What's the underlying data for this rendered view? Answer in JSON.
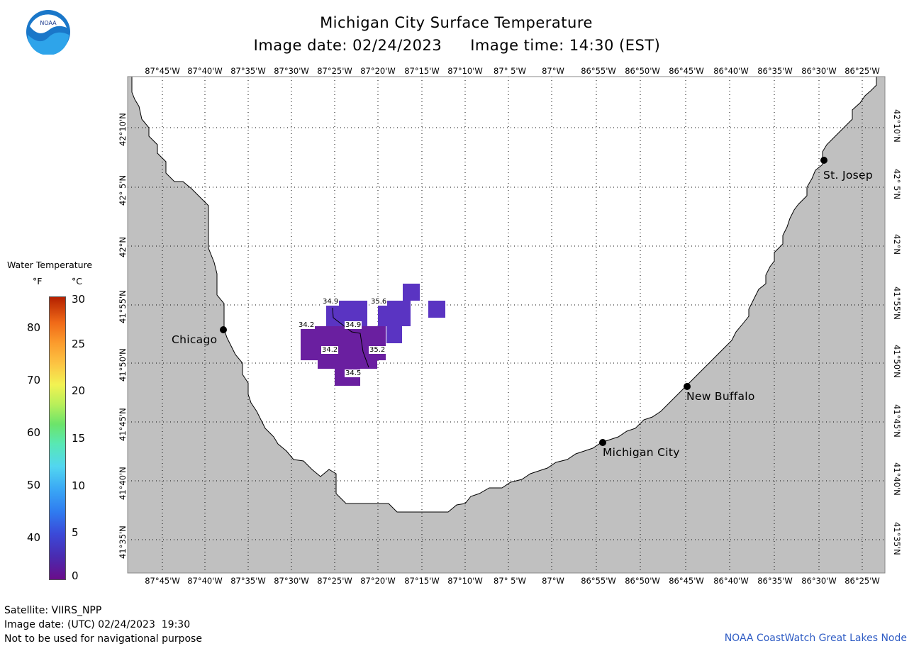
{
  "header": {
    "title": "Michigan City Surface Temperature",
    "image_date": "Image date: 02/24/2023",
    "image_time": "Image time: 14:30 (EST)"
  },
  "logo": {
    "text": "NOAA",
    "icon": "noaa-logo-icon"
  },
  "axes": {
    "longitudes": [
      "87°45'W",
      "87°40'W",
      "87°35'W",
      "87°30'W",
      "87°25'W",
      "87°20'W",
      "87°15'W",
      "87°10'W",
      "87° 5'W",
      "87°W",
      "86°55'W",
      "86°50'W",
      "86°45'W",
      "86°40'W",
      "86°35'W",
      "86°30'W",
      "86°25'W"
    ],
    "latitudes": [
      "42°10'N",
      "42° 5'N",
      "42°N",
      "41°55'N",
      "41°50'N",
      "41°45'N",
      "41°40'N",
      "41°35'N"
    ]
  },
  "legend": {
    "title": "Water Temperature",
    "unit_f": "°F",
    "unit_c": "°C",
    "f_labels": [
      "80",
      "70",
      "60",
      "50",
      "40"
    ],
    "c_labels": [
      "30",
      "25",
      "20",
      "15",
      "10",
      "5",
      "0"
    ]
  },
  "cities": [
    {
      "name": "Chicago"
    },
    {
      "name": "St. Josep"
    },
    {
      "name": "New Buffalo"
    },
    {
      "name": "Michigan City"
    }
  ],
  "temperature_labels": [
    "34.9",
    "35.6",
    "34.2",
    "34.9",
    "34.2",
    "35.2",
    "34.5"
  ],
  "footer": {
    "satellite": "Satellite: VIIRS_NPP",
    "utc_date": "Image date: (UTC) 02/24/2023  19:30",
    "disclaimer": "Not to be used for navigational purpose",
    "credit": "NOAA CoastWatch Great Lakes Node"
  },
  "colors": {
    "land": "#c0c0c0",
    "water": "#ffffff",
    "temp_dark": "#6a1fa0",
    "temp_light": "#5a34c2",
    "credit": "#2f5cc4"
  }
}
